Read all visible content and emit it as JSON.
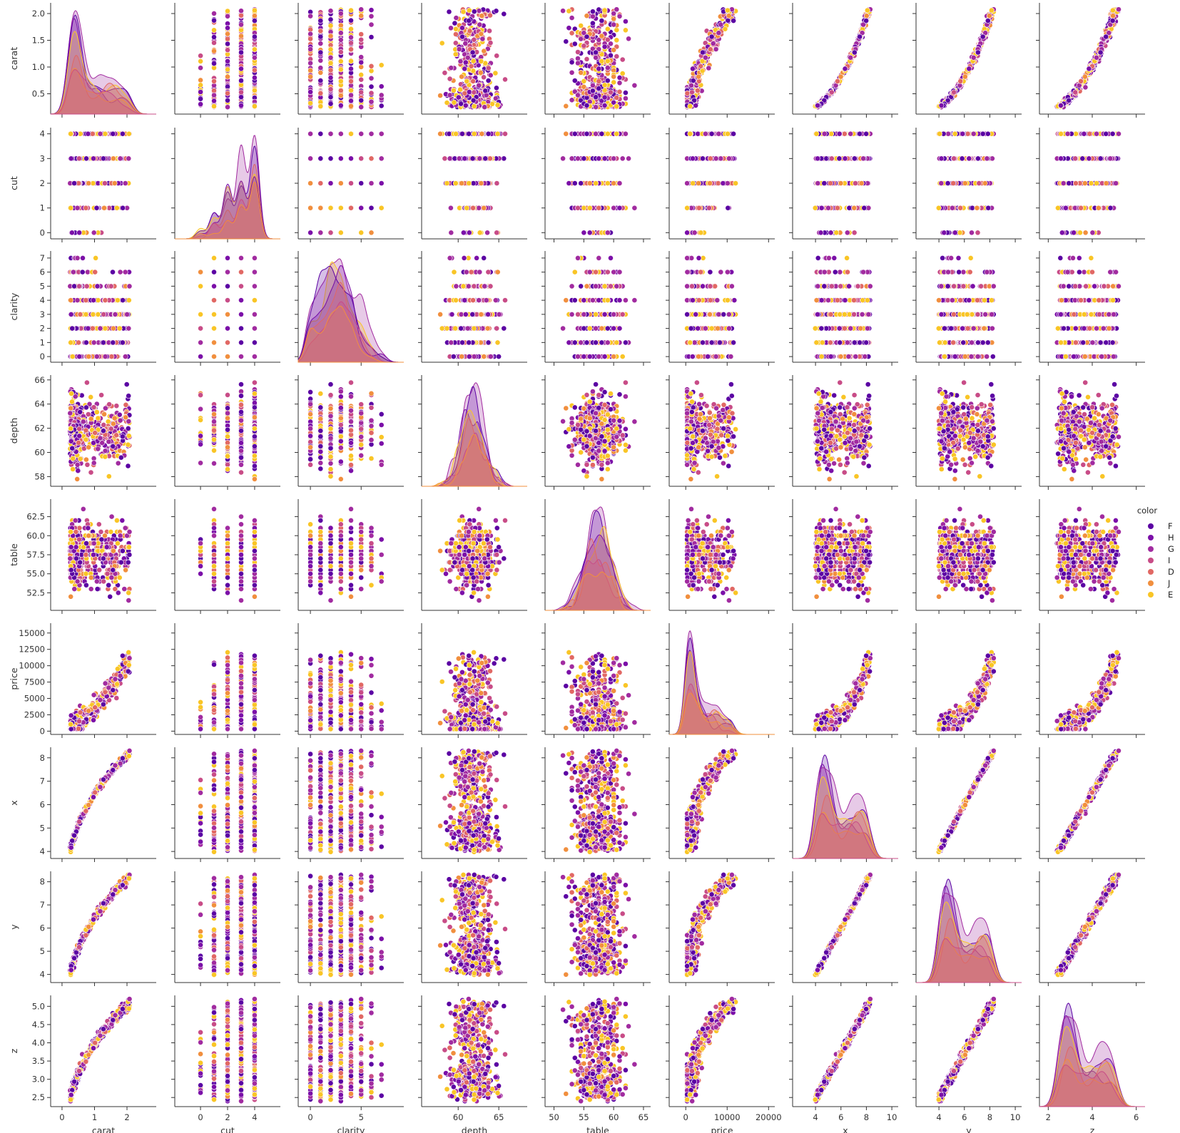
{
  "chart_data": {
    "type": "scatter",
    "variables": [
      "carat",
      "cut",
      "clarity",
      "depth",
      "table",
      "price",
      "x",
      "y",
      "z"
    ],
    "variable_labels": [
      "carat",
      "cut",
      "clarity",
      "depth",
      "table",
      "price",
      "x",
      "y",
      "z"
    ],
    "diagonal": "kde",
    "y_ranges": {
      "carat": [
        0.12,
        2.2
      ],
      "cut": [
        -0.25,
        4.25
      ],
      "clarity": [
        -0.4,
        7.5
      ],
      "depth": [
        57.2,
        66.4
      ],
      "table": [
        50.2,
        64.8
      ],
      "price": [
        -500,
        16500
      ],
      "x": [
        3.7,
        8.45
      ],
      "y": [
        3.65,
        8.45
      ],
      "z": [
        2.25,
        5.3
      ]
    },
    "y_ticks": {
      "carat": [
        "0.5",
        "1.0",
        "1.5",
        "2.0"
      ],
      "cut": [
        "0",
        "1",
        "2",
        "3",
        "4"
      ],
      "clarity": [
        "0",
        "1",
        "2",
        "3",
        "4",
        "5",
        "6",
        "7"
      ],
      "depth": [
        "58",
        "60",
        "62",
        "64",
        "66"
      ],
      "table": [
        "52.5",
        "55.0",
        "57.5",
        "60.0",
        "62.5"
      ],
      "price": [
        "0",
        "2500",
        "5000",
        "7500",
        "10000",
        "12500",
        "15000"
      ],
      "x": [
        "4",
        "5",
        "6",
        "7",
        "8"
      ],
      "y": [
        "4",
        "5",
        "6",
        "7",
        "8"
      ],
      "z": [
        "2.5",
        "3.0",
        "3.5",
        "4.0",
        "4.5",
        "5.0"
      ]
    },
    "x_ranges": {
      "carat": [
        -0.35,
        2.9
      ],
      "cut": [
        -1.9,
        5.9
      ],
      "clarity": [
        -1.2,
        9.2
      ],
      "depth": [
        55.5,
        68.5
      ],
      "table": [
        48.5,
        66.2
      ],
      "price": [
        -4000,
        21500
      ],
      "x": [
        2.2,
        10.5
      ],
      "y": [
        2.2,
        10.5
      ],
      "z": [
        1.6,
        6.4
      ]
    },
    "x_ticks": {
      "carat": [
        "0",
        "1",
        "2"
      ],
      "cut": [
        "0",
        "2",
        "4"
      ],
      "clarity": [
        "0",
        "5"
      ],
      "depth": [
        "60",
        "65"
      ],
      "table": [
        "50",
        "55",
        "60",
        "65"
      ],
      "price": [
        "0",
        "10000",
        "20000"
      ],
      "x": [
        "4",
        "6",
        "8",
        "10"
      ],
      "y": [
        "4",
        "6",
        "8",
        "10"
      ],
      "z": [
        "2",
        "4",
        "6"
      ]
    },
    "hue": "color",
    "legend": {
      "title": "color",
      "placement": "right",
      "entries": [
        "F",
        "H",
        "G",
        "I",
        "D",
        "J",
        "E"
      ]
    },
    "palette": {
      "F": "#5b02a3",
      "H": "#7b0fa8",
      "G": "#a12ba0",
      "I": "#c84c87",
      "D": "#e16864",
      "J": "#f18f3e",
      "E": "#f9c526"
    },
    "n_points_approx": 500,
    "grid": false
  }
}
